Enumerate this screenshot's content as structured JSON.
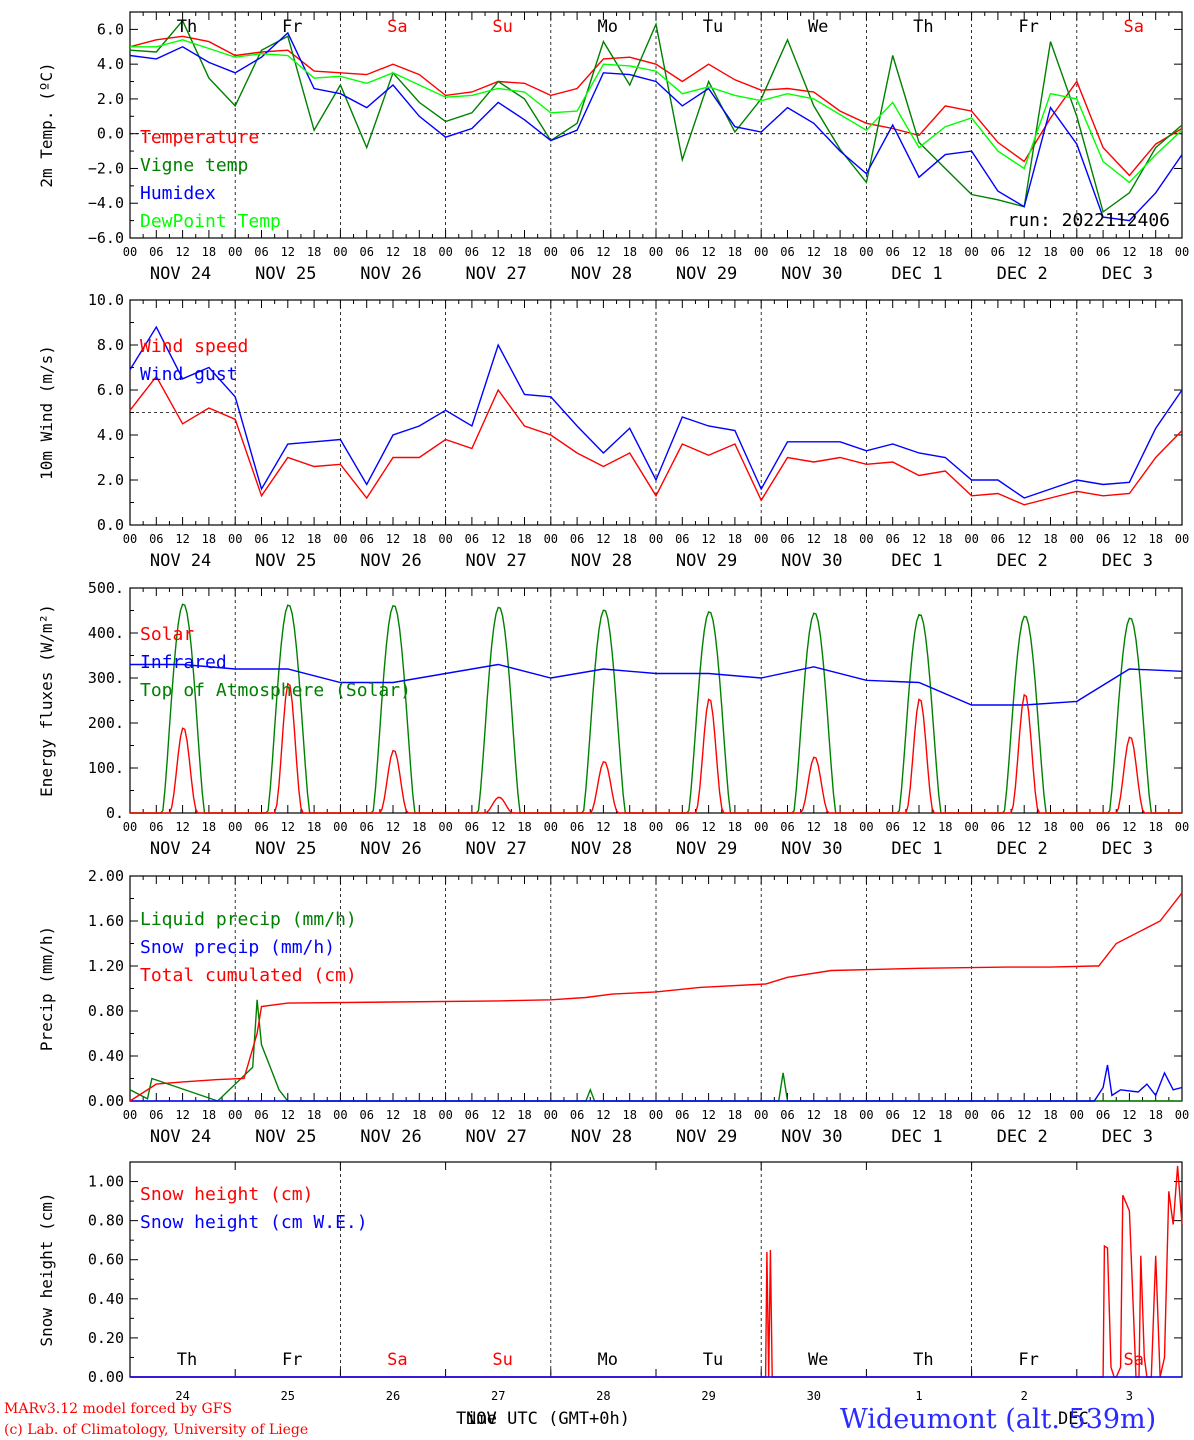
{
  "chart_data": [
    {
      "type": "line",
      "ylabel": "2m Temp. (ºC)",
      "ylim": [
        -6,
        7
      ],
      "yticks": [
        6.0,
        4.0,
        2.0,
        0.0,
        -2.0,
        -4.0,
        -6.0
      ],
      "ytick_labels": [
        "6.0",
        "4.0",
        "2.0",
        "0.0",
        "−2.0",
        "−4.0",
        "−6.0"
      ],
      "ref_line": 0,
      "grid": "dashed vertical lines at 00 UTC",
      "legend_placement": "top-left",
      "annotation": "run: 2022112406",
      "days_of_week": [
        "Th",
        "Fr",
        "Sa",
        "Su",
        "Mo",
        "Tu",
        "We",
        "Th",
        "Fr",
        "Sa"
      ],
      "weekend_flags": [
        false,
        false,
        true,
        true,
        false,
        false,
        false,
        false,
        false,
        true
      ],
      "x_hours": [
        0,
        6,
        12,
        18,
        24,
        30,
        36,
        42,
        48,
        54,
        60,
        66,
        72,
        78,
        84,
        90,
        96,
        102,
        108,
        114,
        120,
        126,
        132,
        138,
        144,
        150,
        156,
        162,
        168,
        174,
        180,
        186,
        192,
        198,
        204,
        210,
        216,
        222,
        228,
        234,
        240
      ],
      "series": [
        {
          "name": "Temperature",
          "color": "#ff0000",
          "values": [
            5.0,
            5.4,
            5.6,
            5.3,
            4.5,
            4.7,
            4.8,
            3.6,
            3.5,
            3.4,
            4.0,
            3.4,
            2.2,
            2.4,
            3.0,
            2.9,
            2.2,
            2.6,
            4.3,
            4.4,
            4.0,
            3.0,
            4.0,
            3.1,
            2.5,
            2.6,
            2.4,
            1.3,
            0.6,
            0.3,
            -0.1,
            1.6,
            1.3,
            -0.5,
            -1.6,
            0.9,
            3.0,
            -0.8,
            -2.4,
            -0.6,
            0.3
          ]
        },
        {
          "name": "Vigne temp",
          "color": "#008000",
          "values": [
            4.8,
            4.7,
            6.5,
            3.2,
            1.6,
            4.8,
            5.6,
            0.2,
            2.8,
            -0.8,
            3.5,
            1.8,
            0.7,
            1.2,
            3.0,
            2.0,
            -0.4,
            0.6,
            5.3,
            2.8,
            6.3,
            -1.5,
            3.0,
            0.1,
            2.0,
            5.4,
            1.6,
            -0.9,
            -2.8,
            4.5,
            -0.5,
            -2.0,
            -3.5,
            -3.8,
            -4.2,
            5.3,
            1.0,
            -4.5,
            -3.4,
            -0.8,
            0.5
          ]
        },
        {
          "name": "Humidex",
          "color": "#0000ff",
          "values": [
            4.5,
            4.3,
            5.0,
            4.1,
            3.5,
            4.4,
            5.8,
            2.6,
            2.3,
            1.5,
            2.8,
            1.0,
            -0.2,
            0.3,
            1.8,
            0.8,
            -0.4,
            0.2,
            3.5,
            3.4,
            3.0,
            1.6,
            2.6,
            0.4,
            0.1,
            1.5,
            0.6,
            -1.0,
            -2.3,
            0.5,
            -2.5,
            -1.2,
            -1.0,
            -3.3,
            -4.2,
            1.5,
            -0.6,
            -4.8,
            -5.0,
            -3.4,
            -1.2
          ]
        },
        {
          "name": "DewPoint Temp",
          "color": "#00ff00",
          "values": [
            5.0,
            5.0,
            5.4,
            4.9,
            4.4,
            4.6,
            4.5,
            3.2,
            3.3,
            2.9,
            3.5,
            2.8,
            2.1,
            2.2,
            2.6,
            2.4,
            1.2,
            1.3,
            4.0,
            3.9,
            3.6,
            2.3,
            2.7,
            2.2,
            1.9,
            2.3,
            2.0,
            1.1,
            0.2,
            1.8,
            -0.8,
            0.4,
            0.9,
            -1.0,
            -2.0,
            2.3,
            2.0,
            -1.6,
            -2.8,
            -1.2,
            0.2
          ]
        }
      ]
    },
    {
      "type": "line",
      "ylabel": "10m Wind (m/s)",
      "ylim": [
        0,
        10
      ],
      "yticks": [
        10.0,
        8.0,
        6.0,
        4.0,
        2.0,
        0.0
      ],
      "ytick_labels": [
        "10.0",
        "8.0",
        "6.0",
        "4.0",
        "2.0",
        "0.0"
      ],
      "ref_line": 5,
      "legend_placement": "top-left",
      "x_hours": [
        0,
        6,
        12,
        18,
        24,
        30,
        36,
        42,
        48,
        54,
        60,
        66,
        72,
        78,
        84,
        90,
        96,
        102,
        108,
        114,
        120,
        126,
        132,
        138,
        144,
        150,
        156,
        162,
        168,
        174,
        180,
        186,
        192,
        198,
        204,
        210,
        216,
        222,
        228,
        234,
        240
      ],
      "series": [
        {
          "name": "Wind speed",
          "color": "#ff0000",
          "values": [
            5.1,
            6.6,
            4.5,
            5.2,
            4.7,
            1.3,
            3.0,
            2.6,
            2.7,
            1.2,
            3.0,
            3.0,
            3.8,
            3.4,
            6.0,
            4.4,
            4.0,
            3.2,
            2.6,
            3.2,
            1.3,
            3.6,
            3.1,
            3.6,
            1.1,
            3.0,
            2.8,
            3.0,
            2.7,
            2.8,
            2.2,
            2.4,
            1.3,
            1.4,
            0.9,
            1.2,
            1.5,
            1.3,
            1.4,
            3.0,
            4.2
          ]
        },
        {
          "name": "Wind gust",
          "color": "#0000ff",
          "values": [
            6.9,
            8.8,
            6.5,
            7.0,
            5.7,
            1.6,
            3.6,
            3.7,
            3.8,
            1.8,
            4.0,
            4.4,
            5.1,
            4.4,
            8.0,
            5.8,
            5.7,
            4.4,
            3.2,
            4.3,
            2.0,
            4.8,
            4.4,
            4.2,
            1.6,
            3.7,
            3.7,
            3.7,
            3.3,
            3.6,
            3.2,
            3.0,
            2.0,
            2.0,
            1.2,
            1.6,
            2.0,
            1.8,
            1.9,
            4.3,
            6.0
          ]
        }
      ]
    },
    {
      "type": "line",
      "ylabel": "Energy fluxes (W/m²)",
      "ylim": [
        0,
        500
      ],
      "yticks": [
        500,
        400,
        300,
        200,
        100,
        0
      ],
      "ytick_labels": [
        "500.",
        "400.",
        "300.",
        "200.",
        "100.",
        "0."
      ],
      "legend_placement": "top-left",
      "series": [
        {
          "name": "Solar",
          "color": "#ff0000",
          "daily_peak_values": [
            190,
            290,
            140,
            35,
            115,
            255,
            125,
            255,
            265,
            170
          ]
        },
        {
          "name": "Infrared",
          "color": "#0000ff",
          "x_hours": [
            0,
            12,
            24,
            36,
            48,
            60,
            72,
            84,
            96,
            108,
            120,
            132,
            144,
            156,
            168,
            180,
            192,
            204,
            216,
            228,
            240
          ],
          "values": [
            330,
            330,
            320,
            320,
            290,
            290,
            310,
            330,
            300,
            320,
            310,
            310,
            300,
            325,
            295,
            290,
            240,
            240,
            248,
            320,
            315
          ]
        },
        {
          "name": "Top of Atmosphere (Solar)",
          "color": "#008000",
          "daily_peak_values": [
            465,
            463,
            462,
            458,
            452,
            448,
            445,
            442,
            438,
            434
          ]
        }
      ]
    },
    {
      "type": "line",
      "ylabel": "Precip (mm/h)",
      "ylim": [
        0,
        2
      ],
      "yticks": [
        2.0,
        1.6,
        1.2,
        0.8,
        0.4,
        0.0
      ],
      "ytick_labels": [
        "2.00",
        "1.60",
        "1.20",
        "0.80",
        "0.40",
        "0.00"
      ],
      "legend_placement": "top-left",
      "series": [
        {
          "name": "Liquid precip (mm/h)",
          "color": "#008000",
          "x_hours": [
            0,
            4,
            5,
            20,
            28,
            29,
            30,
            32,
            34,
            36,
            40,
            60,
            104,
            105,
            106,
            148,
            149,
            150,
            152,
            240
          ],
          "values": [
            0.1,
            0.02,
            0.2,
            0.0,
            0.3,
            0.9,
            0.5,
            0.3,
            0.1,
            0.0,
            0.0,
            0.0,
            0.0,
            0.1,
            0.0,
            0.0,
            0.25,
            0.0,
            0.0,
            0.0
          ]
        },
        {
          "name": "Snow precip (mm/h)",
          "color": "#0000ff",
          "x_hours": [
            0,
            220,
            222,
            223,
            224,
            226,
            230,
            232,
            234,
            236,
            238,
            240
          ],
          "values": [
            0.0,
            0.0,
            0.12,
            0.32,
            0.05,
            0.1,
            0.08,
            0.15,
            0.05,
            0.25,
            0.1,
            0.12
          ]
        },
        {
          "name": "Total cumulated (cm)",
          "color": "#ff0000",
          "x_hours": [
            0,
            6,
            12,
            20,
            26,
            29,
            30,
            36,
            60,
            84,
            96,
            104,
            110,
            120,
            130,
            145,
            150,
            160,
            180,
            200,
            210,
            220,
            221,
            225,
            235,
            240
          ],
          "values": [
            0.0,
            0.15,
            0.17,
            0.19,
            0.2,
            0.6,
            0.84,
            0.87,
            0.88,
            0.89,
            0.9,
            0.92,
            0.95,
            0.97,
            1.01,
            1.04,
            1.1,
            1.16,
            1.18,
            1.19,
            1.19,
            1.2,
            1.2,
            1.4,
            1.6,
            1.85
          ]
        }
      ]
    },
    {
      "type": "line",
      "ylabel": "Snow height (cm)",
      "ylim": [
        0,
        1.1
      ],
      "yticks": [
        1.0,
        0.8,
        0.6,
        0.4,
        0.2,
        0.0
      ],
      "ytick_labels": [
        "1.00",
        "0.80",
        "0.60",
        "0.40",
        "0.20",
        "0.00"
      ],
      "legend_placement": "top-left",
      "series": [
        {
          "name": "Snow height (cm)",
          "color": "#ff0000",
          "x_hours": [
            0,
            145,
            145.3,
            145.7,
            146.1,
            146.5,
            222,
            222.3,
            223,
            223.8,
            224.5,
            225,
            226,
            226.5,
            228,
            229.5,
            230.2,
            230.6,
            231.4,
            232,
            233,
            234,
            235,
            236,
            237,
            238,
            239,
            240
          ],
          "values": [
            0,
            0,
            0.64,
            0,
            0.65,
            0,
            0,
            0.67,
            0.66,
            0.05,
            0,
            0,
            0.05,
            0.93,
            0.85,
            0,
            0,
            0.62,
            0.1,
            0,
            0,
            0.62,
            0,
            0.1,
            0.95,
            0.78,
            1.08,
            0.78
          ]
        },
        {
          "name": "Snow height (cm W.E.)",
          "color": "#0000ff",
          "x_hours": [
            0,
            240
          ],
          "values": [
            0,
            0
          ]
        }
      ]
    }
  ],
  "date_labels": [
    "NOV 24",
    "NOV 25",
    "NOV 26",
    "NOV 27",
    "NOV 28",
    "NOV 29",
    "NOV 30",
    "DEC  1",
    "DEC  2",
    "DEC  3"
  ],
  "hour_labels": [
    "00",
    "06",
    "12",
    "18"
  ],
  "bottom_day_numbers": [
    "24",
    "25",
    "26",
    "27",
    "28",
    "29",
    "30",
    "1",
    "2",
    "3"
  ],
  "bottom_axis": {
    "time_label": "Time UTC (GMT+0h)",
    "overlap_text_1": "NOV",
    "overlap_text_2": "DEC"
  },
  "footer": {
    "line1": "MARv3.12 model forced by GFS",
    "line2": "(c) Lab. of Climatology, University of Liege",
    "station": "Wideumont (alt. 539m)"
  },
  "colors": {
    "red": "#ff0000",
    "green": "#008000",
    "blue": "#0000ff",
    "lime": "#00ff00",
    "weekend_label": "#ff0000",
    "weekday_label": "#000000",
    "station_label": "#2b2bff"
  }
}
